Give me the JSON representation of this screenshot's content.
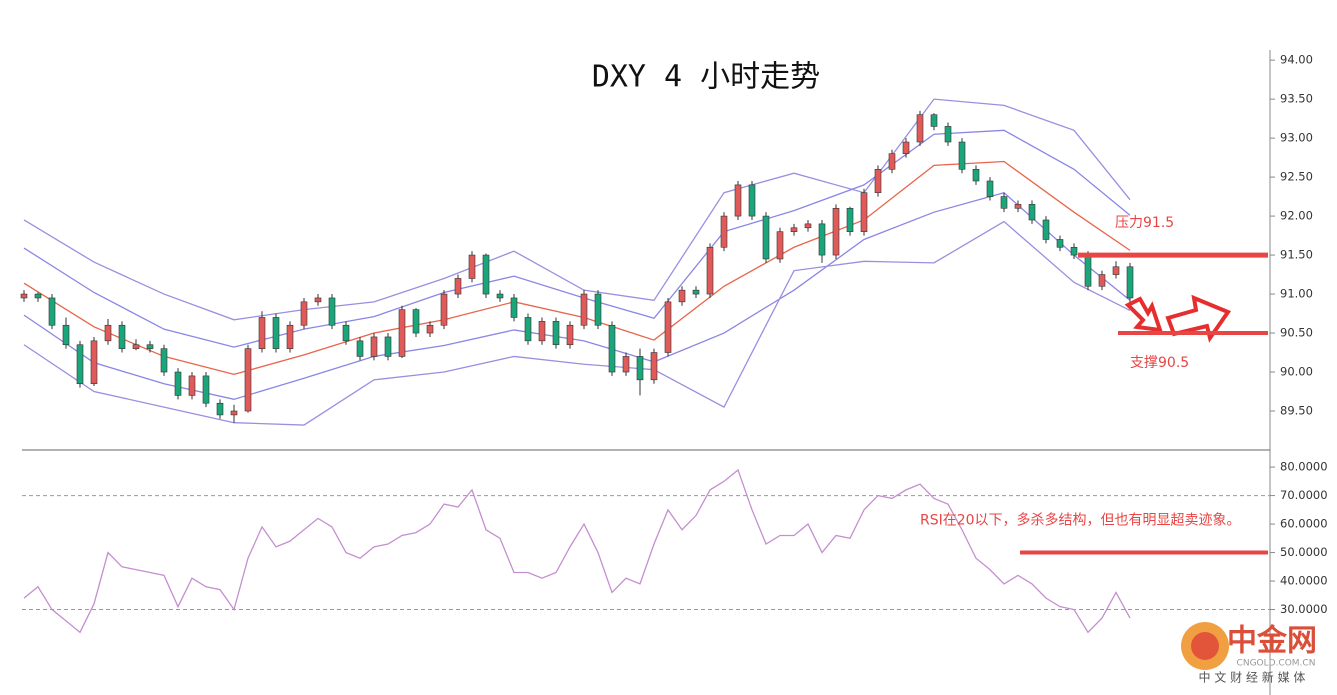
{
  "chart_data": [
    {
      "type": "candlestick",
      "title": "DXY 4 小时走势",
      "xlim": [
        0,
        79
      ],
      "ylim": [
        89.0,
        94.13
      ],
      "yticks": [
        {
          "value": 94,
          "label": "94.00"
        },
        {
          "value": 93.5,
          "label": "93.50"
        },
        {
          "value": 93,
          "label": "93.00"
        },
        {
          "value": 92.5,
          "label": "92.50"
        },
        {
          "value": 92,
          "label": "92.00"
        },
        {
          "value": 91.5,
          "label": "91.50"
        },
        {
          "value": 91,
          "label": "91.00"
        },
        {
          "value": 90.5,
          "label": "90.50"
        },
        {
          "value": 90,
          "label": "90.00"
        },
        {
          "value": 89.5,
          "label": "89.50"
        }
      ],
      "up_color": "#e05a5a",
      "down_color": "#1aa67a",
      "ohlc": [
        [
          90.95,
          91.05,
          90.9,
          91.0
        ],
        [
          91.0,
          91.02,
          90.9,
          90.95
        ],
        [
          90.95,
          91.0,
          90.55,
          90.6
        ],
        [
          90.6,
          90.7,
          90.3,
          90.35
        ],
        [
          90.35,
          90.4,
          89.8,
          89.85
        ],
        [
          89.85,
          90.45,
          89.82,
          90.4
        ],
        [
          90.4,
          90.68,
          90.35,
          90.6
        ],
        [
          90.6,
          90.65,
          90.25,
          90.3
        ],
        [
          90.3,
          90.42,
          90.28,
          90.35
        ],
        [
          90.35,
          90.4,
          90.25,
          90.3
        ],
        [
          90.3,
          90.35,
          89.95,
          90.0
        ],
        [
          90.0,
          90.05,
          89.65,
          89.7
        ],
        [
          89.7,
          90.0,
          89.65,
          89.95
        ],
        [
          89.95,
          90.0,
          89.55,
          89.6
        ],
        [
          89.6,
          89.65,
          89.4,
          89.45
        ],
        [
          89.45,
          89.58,
          89.35,
          89.5
        ],
        [
          89.5,
          90.35,
          89.48,
          90.3
        ],
        [
          90.3,
          90.78,
          90.25,
          90.7
        ],
        [
          90.7,
          90.75,
          90.25,
          90.3
        ],
        [
          90.3,
          90.65,
          90.25,
          90.6
        ],
        [
          90.6,
          90.95,
          90.55,
          90.9
        ],
        [
          90.9,
          91.0,
          90.85,
          90.95
        ],
        [
          90.95,
          91.0,
          90.55,
          90.6
        ],
        [
          90.6,
          90.65,
          90.35,
          90.4
        ],
        [
          90.4,
          90.45,
          90.15,
          90.2
        ],
        [
          90.2,
          90.5,
          90.15,
          90.45
        ],
        [
          90.45,
          90.5,
          90.15,
          90.2
        ],
        [
          90.2,
          90.85,
          90.18,
          90.8
        ],
        [
          90.8,
          90.82,
          90.45,
          90.5
        ],
        [
          90.5,
          90.65,
          90.45,
          90.6
        ],
        [
          90.6,
          91.05,
          90.55,
          91.0
        ],
        [
          91.0,
          91.25,
          90.95,
          91.2
        ],
        [
          91.2,
          91.55,
          91.15,
          91.5
        ],
        [
          91.5,
          91.52,
          90.95,
          91.0
        ],
        [
          91.0,
          91.05,
          90.9,
          90.95
        ],
        [
          90.95,
          91.0,
          90.65,
          90.7
        ],
        [
          90.7,
          90.75,
          90.35,
          90.4
        ],
        [
          90.4,
          90.7,
          90.35,
          90.65
        ],
        [
          90.65,
          90.7,
          90.3,
          90.35
        ],
        [
          90.35,
          90.65,
          90.3,
          90.6
        ],
        [
          90.6,
          91.05,
          90.55,
          91.0
        ],
        [
          91.0,
          91.05,
          90.55,
          90.6
        ],
        [
          90.6,
          90.65,
          89.95,
          90.0
        ],
        [
          90.0,
          90.25,
          89.95,
          90.2
        ],
        [
          90.2,
          90.3,
          89.7,
          89.9
        ],
        [
          89.9,
          90.3,
          89.85,
          90.25
        ],
        [
          90.25,
          90.95,
          90.2,
          90.9
        ],
        [
          90.9,
          91.1,
          90.85,
          91.05
        ],
        [
          91.05,
          91.1,
          90.95,
          91.0
        ],
        [
          91.0,
          91.65,
          90.95,
          91.6
        ],
        [
          91.6,
          92.05,
          91.55,
          92.0
        ],
        [
          92.0,
          92.45,
          91.95,
          92.4
        ],
        [
          92.4,
          92.45,
          91.95,
          92.0
        ],
        [
          92.0,
          92.05,
          91.4,
          91.45
        ],
        [
          91.45,
          91.85,
          91.4,
          91.8
        ],
        [
          91.8,
          91.9,
          91.75,
          91.85
        ],
        [
          91.85,
          91.95,
          91.8,
          91.9
        ],
        [
          91.9,
          91.95,
          91.4,
          91.5
        ],
        [
          91.5,
          92.15,
          91.45,
          92.1
        ],
        [
          92.1,
          92.12,
          91.75,
          91.8
        ],
        [
          91.8,
          92.35,
          91.75,
          92.3
        ],
        [
          92.3,
          92.65,
          92.25,
          92.6
        ],
        [
          92.6,
          92.85,
          92.55,
          92.8
        ],
        [
          92.8,
          93.0,
          92.75,
          92.95
        ],
        [
          92.95,
          93.35,
          92.9,
          93.3
        ],
        [
          93.3,
          93.32,
          93.1,
          93.15
        ],
        [
          93.15,
          93.2,
          92.9,
          92.95
        ],
        [
          92.95,
          93.0,
          92.55,
          92.6
        ],
        [
          92.6,
          92.65,
          92.4,
          92.45
        ],
        [
          92.45,
          92.5,
          92.2,
          92.25
        ],
        [
          92.25,
          92.3,
          92.05,
          92.1
        ],
        [
          92.1,
          92.2,
          92.05,
          92.15
        ],
        [
          92.15,
          92.2,
          91.9,
          91.95
        ],
        [
          91.95,
          92.0,
          91.65,
          91.7
        ],
        [
          91.7,
          91.75,
          91.55,
          91.6
        ],
        [
          91.6,
          91.65,
          91.45,
          91.5
        ],
        [
          91.5,
          91.55,
          91.05,
          91.1
        ],
        [
          91.1,
          91.3,
          91.05,
          91.25
        ],
        [
          91.25,
          91.42,
          91.2,
          91.35
        ],
        [
          91.35,
          91.4,
          90.9,
          90.95
        ]
      ],
      "band_x": [
        0,
        5,
        10,
        15,
        20,
        25,
        30,
        35,
        40,
        45,
        50,
        55,
        60,
        65,
        70,
        75,
        79
      ],
      "bands": [
        {
          "color": "#9a8fe0",
          "values": [
            91.95,
            91.41,
            91.0,
            90.67,
            90.8,
            90.9,
            91.2,
            91.55,
            91.05,
            90.92,
            92.3,
            92.55,
            92.3,
            93.5,
            93.42,
            93.1,
            92.21
          ]
        },
        {
          "color": "#8a86e6",
          "values": [
            91.59,
            91.02,
            90.55,
            90.32,
            90.55,
            90.71,
            91.02,
            91.23,
            90.95,
            90.69,
            91.8,
            92.07,
            92.4,
            93.05,
            93.1,
            92.6,
            92.01
          ]
        },
        {
          "color": "#e8644a",
          "values": [
            91.14,
            90.58,
            90.2,
            89.97,
            90.22,
            90.5,
            90.67,
            90.9,
            90.7,
            90.41,
            91.1,
            91.6,
            91.95,
            92.65,
            92.7,
            92.05,
            91.56
          ]
        },
        {
          "color": "#8a86e6",
          "values": [
            90.73,
            90.12,
            89.85,
            89.65,
            89.92,
            90.2,
            90.34,
            90.54,
            90.4,
            90.13,
            90.5,
            91.05,
            91.7,
            92.05,
            92.3,
            91.5,
            90.92
          ]
        },
        {
          "color": "#9a8fe0",
          "values": [
            90.35,
            89.75,
            89.55,
            89.35,
            89.32,
            89.9,
            90.0,
            90.2,
            90.1,
            90.03,
            89.55,
            91.3,
            91.42,
            91.4,
            91.93,
            91.15,
            90.79
          ]
        }
      ],
      "levels": [
        {
          "label": "压力91.5",
          "value": 91.5
        },
        {
          "label": "支撑90.5",
          "value": 90.5
        }
      ],
      "level_color": "#e84545"
    },
    {
      "type": "line",
      "xlim": [
        0,
        79
      ],
      "ylim": [
        0,
        86
      ],
      "yticks": [
        {
          "value": 80,
          "label": "80.0000"
        },
        {
          "value": 70,
          "label": "70.0000"
        },
        {
          "value": 60,
          "label": "60.0000"
        },
        {
          "value": 50,
          "label": "50.0000"
        },
        {
          "value": 40,
          "label": "40.0000"
        },
        {
          "value": 30,
          "label": "30.0000"
        }
      ],
      "series": [
        {
          "name": "RSI",
          "color": "#c48fd0",
          "values": [
            34,
            38,
            30,
            26,
            22,
            32,
            50,
            45,
            44,
            43,
            42,
            31,
            41,
            38,
            37,
            30,
            48,
            59,
            52,
            54,
            58,
            62,
            59,
            50,
            48,
            52,
            53,
            56,
            57,
            60,
            67,
            66,
            72,
            58,
            55,
            43,
            43,
            41,
            43,
            52,
            60,
            50,
            36,
            41,
            39,
            53,
            65,
            58,
            63,
            72,
            75,
            79,
            65,
            53,
            56,
            56,
            60,
            50,
            56,
            55,
            65,
            70,
            69,
            72,
            74,
            69,
            67,
            58,
            48,
            44,
            39,
            42,
            39,
            34,
            31,
            30,
            22,
            27,
            36,
            27
          ]
        }
      ],
      "ref_lines": [
        70,
        30
      ],
      "levels": [
        {
          "label": "RSI在20以下，多杀多结构，但也有明显超卖迹象。",
          "value": 50
        }
      ],
      "level_color": "#e84545"
    }
  ],
  "watermark": {
    "name": "中金网",
    "domain": "CNGOLD.COM.CN",
    "tagline": "中 文 财 经 新 媒 体"
  }
}
